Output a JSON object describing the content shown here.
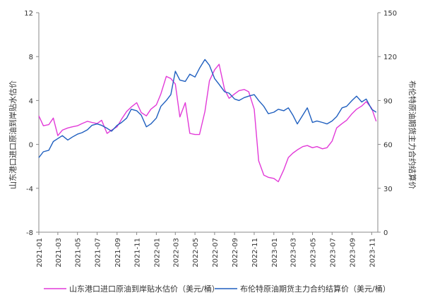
{
  "chart_data": {
    "type": "line",
    "y_left": {
      "label": "山东港口进口原油到岸贴水估价",
      "lim": [
        -8,
        12
      ],
      "ticks": [
        -8,
        -4,
        0,
        4,
        8,
        12
      ]
    },
    "y_right": {
      "label": "布伦特原油期货主力合约结算价",
      "lim": [
        0,
        150
      ],
      "ticks": [
        0,
        30,
        60,
        90,
        120,
        150
      ]
    },
    "x_ticks": [
      "2021-01",
      "2021-03",
      "2021-05",
      "2021-07",
      "2021-09",
      "2021-11",
      "2022-01",
      "2022-03",
      "2022-05",
      "2022-07",
      "2022-09",
      "2022-11",
      "2023-01",
      "2023-03",
      "2023-05",
      "2023-07",
      "2023-09",
      "2023-11"
    ],
    "grid": false,
    "legend_position": "bottom",
    "series": [
      {
        "name": "山东港口进口原油到岸贴水估价（美元/桶）",
        "axis": "left",
        "color": "#e23ad8",
        "x": [
          "2021-01-01",
          "2021-01-15",
          "2021-02-01",
          "2021-02-15",
          "2021-03-01",
          "2021-03-15",
          "2021-04-01",
          "2021-04-15",
          "2021-05-01",
          "2021-05-15",
          "2021-06-01",
          "2021-06-15",
          "2021-07-01",
          "2021-07-15",
          "2021-08-01",
          "2021-08-15",
          "2021-09-01",
          "2021-09-15",
          "2021-10-01",
          "2021-10-15",
          "2021-11-01",
          "2021-11-15",
          "2021-12-01",
          "2021-12-15",
          "2022-01-01",
          "2022-01-15",
          "2022-02-01",
          "2022-02-15",
          "2022-03-01",
          "2022-03-15",
          "2022-04-01",
          "2022-04-15",
          "2022-05-01",
          "2022-05-15",
          "2022-06-01",
          "2022-06-15",
          "2022-07-01",
          "2022-07-15",
          "2022-08-01",
          "2022-08-15",
          "2022-09-01",
          "2022-09-15",
          "2022-10-01",
          "2022-10-15",
          "2022-11-01",
          "2022-11-15",
          "2022-12-01",
          "2022-12-15",
          "2023-01-01",
          "2023-01-15",
          "2023-02-01",
          "2023-02-15",
          "2023-03-01",
          "2023-03-15",
          "2023-04-01",
          "2023-04-15",
          "2023-05-01",
          "2023-05-15",
          "2023-06-01",
          "2023-06-15",
          "2023-07-01",
          "2023-07-15",
          "2023-08-01",
          "2023-08-15",
          "2023-09-01",
          "2023-09-15",
          "2023-10-01",
          "2023-10-15",
          "2023-11-01",
          "2023-11-15"
        ],
        "values": [
          2.6,
          1.7,
          1.8,
          2.4,
          0.8,
          1.3,
          1.5,
          1.6,
          1.7,
          1.9,
          2.1,
          2.0,
          1.9,
          2.2,
          1.0,
          1.3,
          1.6,
          2.3,
          3.0,
          3.4,
          3.8,
          2.9,
          2.6,
          3.2,
          3.6,
          4.6,
          6.2,
          6.0,
          5.5,
          2.5,
          3.8,
          1.0,
          0.9,
          0.9,
          3.0,
          5.8,
          6.8,
          7.3,
          5.0,
          4.2,
          4.6,
          4.9,
          5.0,
          4.8,
          3.2,
          -1.5,
          -2.8,
          -3.0,
          -3.1,
          -3.4,
          -2.3,
          -1.2,
          -0.8,
          -0.5,
          -0.2,
          -0.1,
          -0.3,
          -0.2,
          -0.4,
          -0.3,
          0.3,
          1.5,
          1.9,
          2.2,
          2.8,
          3.2,
          3.5,
          3.9,
          3.3,
          2.1
        ]
      },
      {
        "name": "布伦特原油期货主力合约结算价（美元/桶）",
        "axis": "right",
        "color": "#1f5fbf",
        "x": [
          "2021-01-01",
          "2021-01-15",
          "2021-02-01",
          "2021-02-15",
          "2021-03-01",
          "2021-03-15",
          "2021-04-01",
          "2021-04-15",
          "2021-05-01",
          "2021-05-15",
          "2021-06-01",
          "2021-06-15",
          "2021-07-01",
          "2021-07-15",
          "2021-08-01",
          "2021-08-15",
          "2021-09-01",
          "2021-09-15",
          "2021-10-01",
          "2021-10-15",
          "2021-11-01",
          "2021-11-15",
          "2021-12-01",
          "2021-12-15",
          "2022-01-01",
          "2022-01-15",
          "2022-02-01",
          "2022-02-15",
          "2022-03-01",
          "2022-03-15",
          "2022-04-01",
          "2022-04-15",
          "2022-05-01",
          "2022-05-15",
          "2022-06-01",
          "2022-06-15",
          "2022-07-01",
          "2022-07-15",
          "2022-08-01",
          "2022-08-15",
          "2022-09-01",
          "2022-09-15",
          "2022-10-01",
          "2022-10-15",
          "2022-11-01",
          "2022-11-15",
          "2022-12-01",
          "2022-12-15",
          "2023-01-01",
          "2023-01-15",
          "2023-02-01",
          "2023-02-15",
          "2023-03-01",
          "2023-03-15",
          "2023-04-01",
          "2023-04-15",
          "2023-05-01",
          "2023-05-15",
          "2023-06-01",
          "2023-06-15",
          "2023-07-01",
          "2023-07-15",
          "2023-08-01",
          "2023-08-15",
          "2023-09-01",
          "2023-09-15",
          "2023-10-01",
          "2023-10-15",
          "2023-11-01",
          "2023-11-15"
        ],
        "values": [
          51,
          55,
          56,
          62,
          64,
          66,
          63,
          65,
          67,
          68,
          70,
          73,
          74,
          73,
          71,
          69,
          73,
          75,
          78,
          84,
          83,
          80,
          72,
          74,
          78,
          86,
          90,
          94,
          110,
          104,
          103,
          108,
          106,
          112,
          118,
          114,
          105,
          101,
          96,
          95,
          91,
          90,
          92,
          93,
          94,
          90,
          86,
          81,
          82,
          84,
          83,
          85,
          80,
          74,
          80,
          85,
          75,
          76,
          75,
          74,
          76,
          79,
          85,
          86,
          90,
          93,
          89,
          91,
          84,
          82
        ]
      }
    ]
  }
}
